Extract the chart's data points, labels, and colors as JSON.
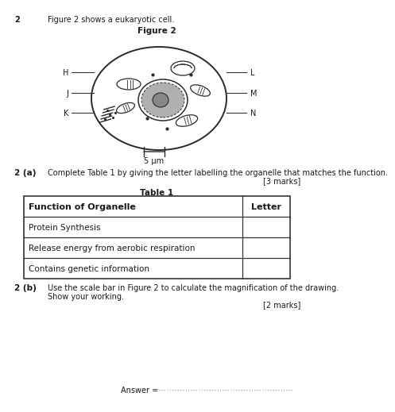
{
  "bg_color": "#ffffff",
  "question_number": "2",
  "intro_text": "Figure 2 shows a eukaryotic cell.",
  "figure_label": "Figure 2",
  "scale_bar_label": "5 μm",
  "section_a_label": "2 (a)",
  "section_a_text": "Complete Table 1 by giving the letter labelling the organelle that matches the function.",
  "section_a_marks": "[3 marks]",
  "table_title": "Table 1",
  "table_header": [
    "Function of Organelle",
    "Letter"
  ],
  "table_rows": [
    [
      "Protein Synthesis",
      ""
    ],
    [
      "Release energy from aerobic respiration",
      ""
    ],
    [
      "Contains genetic information",
      ""
    ]
  ],
  "section_b_label": "2 (b)",
  "section_b_text1": "Use the scale bar in Figure 2 to calculate the magnification of the drawing.",
  "section_b_text2": "Show your working.",
  "section_b_marks": "[2 marks]",
  "answer_label": "Answer = "
}
